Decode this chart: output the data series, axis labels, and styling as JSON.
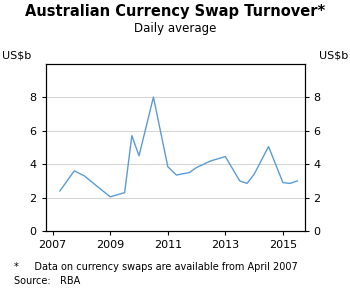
{
  "title": "Australian Currency Swap Turnover*",
  "subtitle": "Daily average",
  "ylabel_left": "US$b",
  "ylabel_right": "US$b",
  "footnote": "*     Data on currency swaps are available from April 2007",
  "source": "Source:   RBA",
  "line_color": "#5b9bd5",
  "ylim": [
    0,
    10
  ],
  "yticks": [
    0,
    2,
    4,
    6,
    8
  ],
  "x": [
    2007.25,
    2007.75,
    2008.1,
    2008.6,
    2009.0,
    2009.5,
    2009.75,
    2010.0,
    2010.5,
    2011.0,
    2011.3,
    2011.75,
    2012.0,
    2012.5,
    2013.0,
    2013.5,
    2013.75,
    2014.0,
    2014.5,
    2015.0,
    2015.25,
    2015.5
  ],
  "y": [
    2.4,
    3.6,
    3.3,
    2.6,
    2.05,
    2.3,
    5.7,
    4.5,
    8.0,
    3.85,
    3.35,
    3.5,
    3.8,
    4.2,
    4.45,
    3.0,
    2.85,
    3.4,
    5.05,
    2.9,
    2.85,
    3.0
  ],
  "xlim": [
    2006.75,
    2015.75
  ],
  "xticks": [
    2007,
    2009,
    2011,
    2013,
    2015
  ],
  "xticklabels": [
    "2007",
    "2009",
    "2011",
    "2013",
    "2015"
  ],
  "grid_color": "#cccccc",
  "bg_color": "#ffffff",
  "title_fontsize": 10.5,
  "subtitle_fontsize": 8.5,
  "tick_fontsize": 8,
  "footnote_fontsize": 7,
  "source_fontsize": 7
}
